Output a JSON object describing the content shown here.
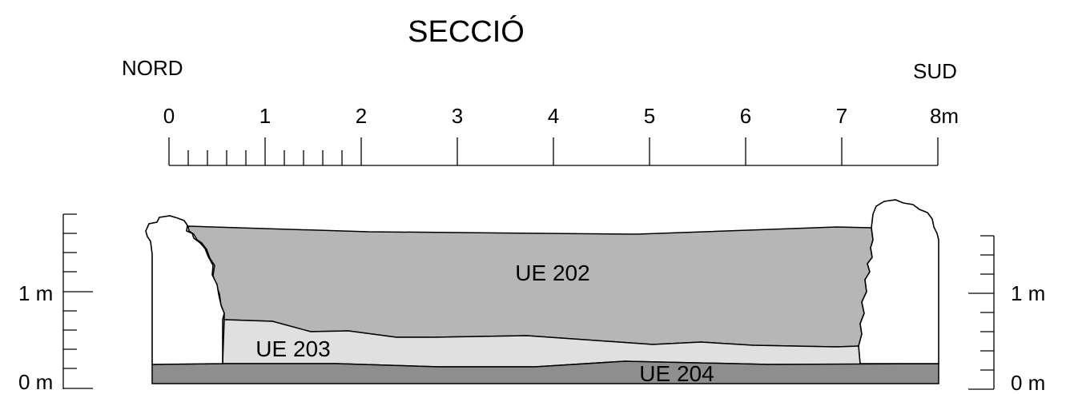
{
  "title": "SECCIÓ",
  "orientation": {
    "left": "NORD",
    "right": "SUD"
  },
  "horizontal_scale": {
    "tick_labels": [
      "0",
      "1",
      "2",
      "3",
      "4",
      "5",
      "6",
      "7",
      "8m"
    ]
  },
  "vertical_scale_left": {
    "labels": {
      "one": "1 m",
      "zero": "0 m"
    }
  },
  "vertical_scale_right": {
    "labels": {
      "one": "1 m",
      "zero": "0 m"
    }
  },
  "layers": [
    {
      "id": "UE 202",
      "label": "UE 202",
      "color": "#b6b6b6"
    },
    {
      "id": "UE 203",
      "label": "UE 203",
      "color": "#e0e0e0"
    },
    {
      "id": "UE 204",
      "label": "UE 204",
      "color": "#8e8e8e"
    }
  ]
}
